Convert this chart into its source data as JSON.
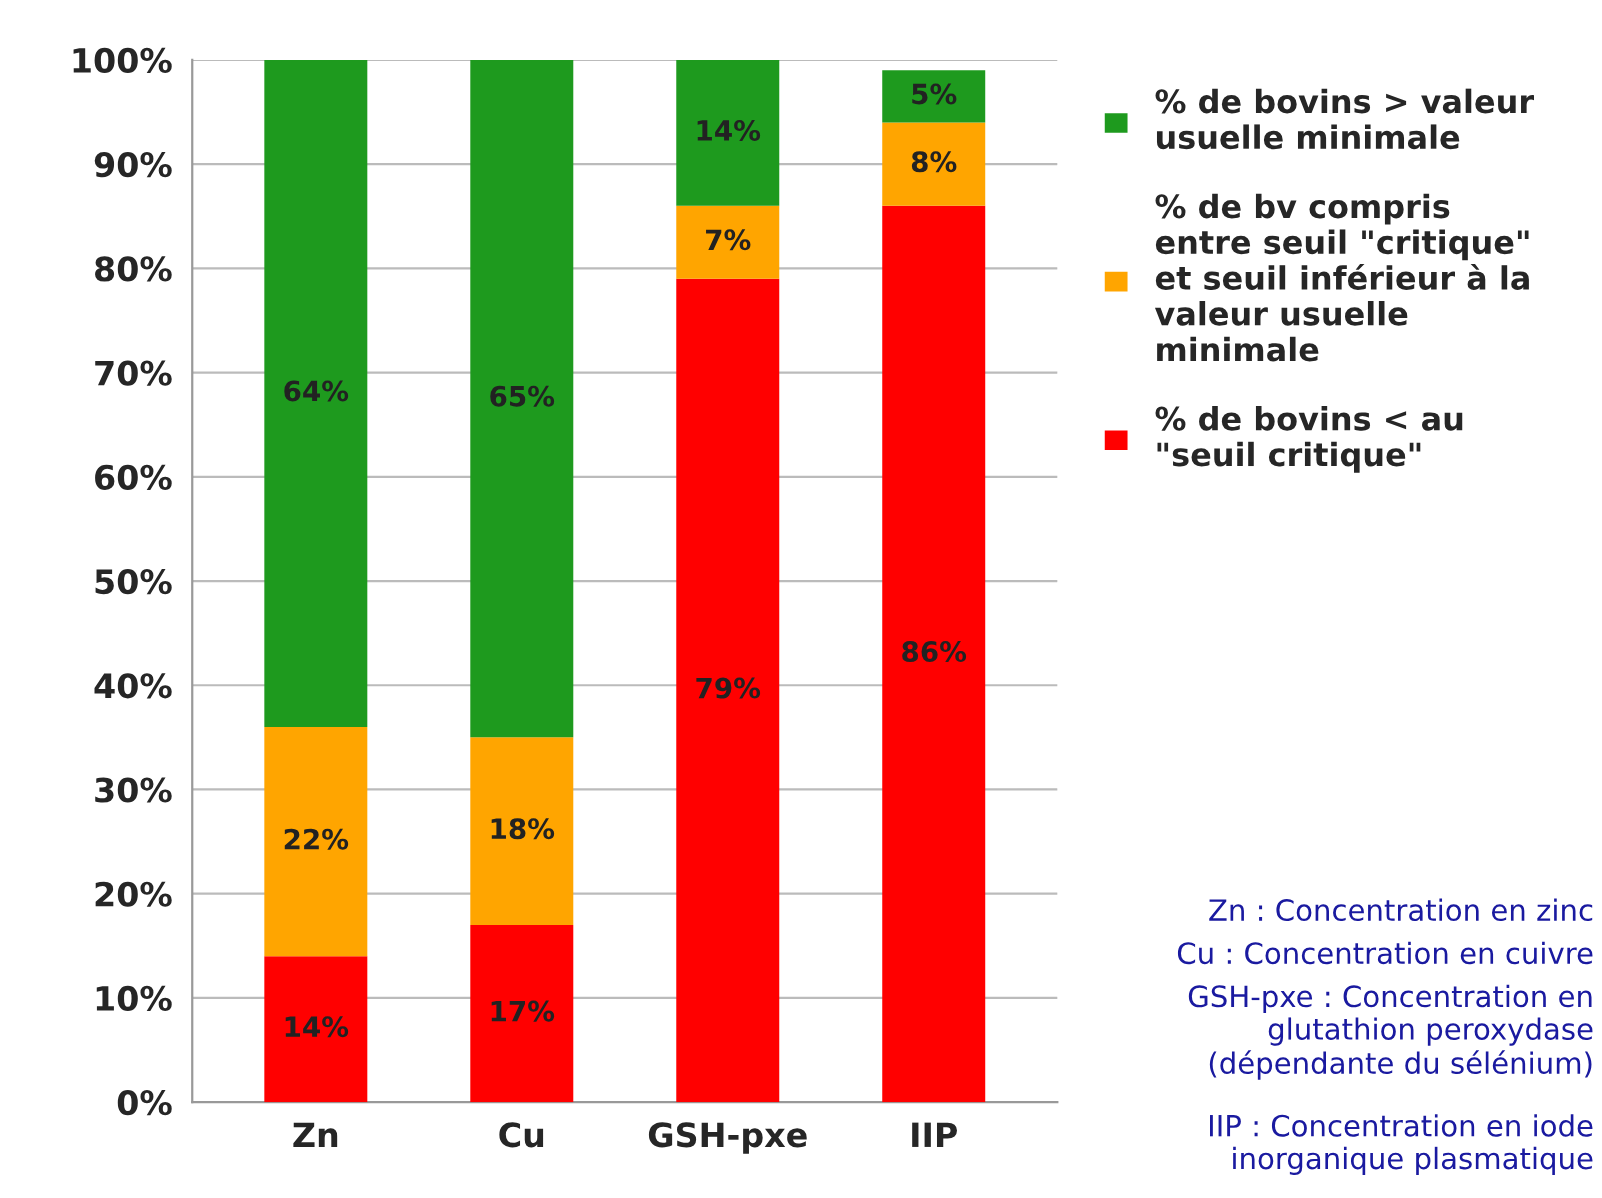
{
  "chart_data": {
    "type": "bar",
    "stacked": true,
    "categories": [
      "Zn",
      "Cu",
      "GSH-pxe",
      "IIP"
    ],
    "series": [
      {
        "name": "% de bovins < au\n\"seuil critique\"",
        "color": "#ff0000",
        "values": [
          14,
          17,
          79,
          86
        ],
        "value_labels": [
          "14%",
          "17%",
          "79%",
          "86%"
        ]
      },
      {
        "name": "% de bv compris\nentre seuil \"critique\"\net seuil inférieur à la\nvaleur usuelle\nminimale",
        "color": "#ffa500",
        "values": [
          22,
          18,
          7,
          8
        ],
        "value_labels": [
          "22%",
          "18%",
          "7%",
          "8%"
        ]
      },
      {
        "name": "% de bovins > valeur\nusuelle minimale",
        "color": "#1e9a1e",
        "values": [
          64,
          65,
          14,
          5
        ],
        "value_labels": [
          "64%",
          "65%",
          "14%",
          "5%"
        ]
      }
    ],
    "ylim": [
      0,
      100
    ],
    "yticks": [
      {
        "value": 0,
        "label": "0%"
      },
      {
        "value": 10,
        "label": "10%"
      },
      {
        "value": 20,
        "label": "20%"
      },
      {
        "value": 30,
        "label": "30%"
      },
      {
        "value": 40,
        "label": "40%"
      },
      {
        "value": 50,
        "label": "50%"
      },
      {
        "value": 60,
        "label": "60%"
      },
      {
        "value": 70,
        "label": "70%"
      },
      {
        "value": 80,
        "label": "80%"
      },
      {
        "value": 90,
        "label": "90%"
      },
      {
        "value": 100,
        "label": "100%"
      }
    ],
    "grid": "y",
    "legend": "right",
    "annotations": [
      "Zn : Concentration en zinc",
      "Cu : Concentration en cuivre",
      "GSH-pxe : Concentration en\nglutathion peroxydase\n(dépendante du sélénium)",
      "IIP : Concentration en iode\ninorganique plasmatique"
    ]
  }
}
